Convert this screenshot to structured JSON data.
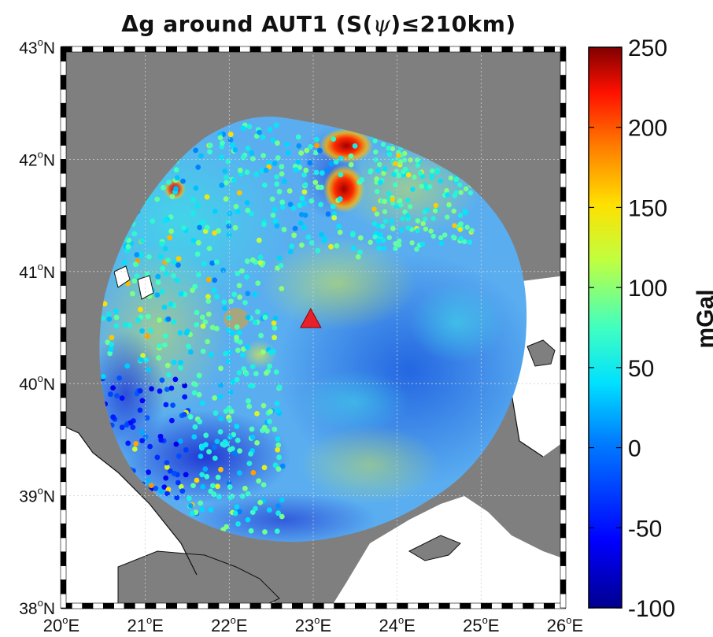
{
  "title_parts": {
    "prefix": "Δg around AUT1 (S(",
    "psi": "ψ",
    "suffix": ")≤210km)"
  },
  "map": {
    "lon_range": [
      20,
      26
    ],
    "lat_range": [
      38,
      43
    ],
    "lon_ticks": [
      20,
      21,
      22,
      23,
      24,
      25,
      26
    ],
    "lat_ticks": [
      38,
      39,
      40,
      41,
      42,
      43
    ],
    "lon_tick_labels": [
      "20",
      "21",
      "22",
      "23",
      "24",
      "25",
      "26"
    ],
    "lat_tick_labels": [
      "38",
      "39",
      "40",
      "41",
      "42",
      "43"
    ],
    "lon_suffix": "E",
    "lat_suffix": "N",
    "deg_symbol": "o",
    "station": {
      "name": "AUT1",
      "lon": 22.97,
      "lat": 40.57,
      "color": "#e8202a"
    },
    "land_color": "#7f7f7f",
    "sea_color": "#ffffff",
    "grid": true
  },
  "colorbar": {
    "label": "mGal",
    "min": -100,
    "max": 250,
    "ticks": [
      250,
      200,
      150,
      100,
      50,
      0,
      -50,
      -100
    ],
    "tick_labels": [
      "250",
      "200",
      "150",
      "100",
      "50",
      "0",
      "-50",
      "-100"
    ],
    "colormap": "jet"
  },
  "chart_data": {
    "type": "heatmap",
    "title": "Δg around AUT1 (S(ψ)≤210km)",
    "xlim": [
      20,
      26
    ],
    "ylim": [
      38,
      43
    ],
    "zlim": [
      -100,
      250
    ],
    "zlabel": "mGal",
    "station": [
      22.97,
      40.57
    ],
    "cap_radius_km": 210,
    "anomaly_features": [
      {
        "lon": 23.35,
        "lat": 42.1,
        "value": 230
      },
      {
        "lon": 23.35,
        "lat": 41.75,
        "value": 210
      },
      {
        "lon": 21.0,
        "lat": 41.75,
        "value": 180
      },
      {
        "lon": 21.7,
        "lat": 39.2,
        "value": -70
      },
      {
        "lon": 20.9,
        "lat": 39.6,
        "value": -60
      },
      {
        "lon": 24.2,
        "lat": 40.35,
        "value": 0
      },
      {
        "lon": 22.6,
        "lat": 40.8,
        "value": 80
      }
    ]
  }
}
